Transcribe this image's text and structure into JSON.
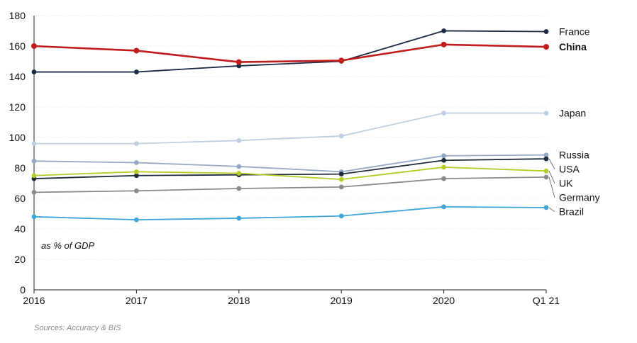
{
  "chart_data": {
    "type": "line",
    "x": [
      "2016",
      "2017",
      "2018",
      "2019",
      "2020",
      "Q1 21"
    ],
    "ylim": [
      0,
      180
    ],
    "yticks": [
      0,
      20,
      40,
      60,
      80,
      100,
      120,
      140,
      160,
      180
    ],
    "grid": true,
    "legend": "direct labels at right end of lines",
    "annotation": "as % of GDP",
    "source": "Sources: Accuracy & BIS",
    "series": [
      {
        "name": "France",
        "color": "#1e2b45",
        "bold": false,
        "values": [
          143,
          143,
          147,
          150,
          170,
          169.5
        ]
      },
      {
        "name": "China",
        "color": "#c01c1c",
        "bold": true,
        "values": [
          160,
          157,
          149.5,
          150.5,
          161,
          159.5
        ]
      },
      {
        "name": "Japan",
        "color": "#bfcde0",
        "bold": false,
        "values": [
          96,
          96,
          98,
          101,
          116,
          116
        ]
      },
      {
        "name": "Russia",
        "color": "#95a8c4",
        "bold": false,
        "values": [
          84.5,
          83.5,
          81,
          77.5,
          88,
          88.5
        ]
      },
      {
        "name": "USA",
        "color": "#1f2a3c",
        "bold": false,
        "values": [
          73,
          75,
          75.5,
          76,
          85,
          86
        ]
      },
      {
        "name": "UK",
        "color": "#b6cc26",
        "bold": false,
        "values": [
          75,
          77.5,
          76.5,
          72.5,
          80.5,
          78
        ]
      },
      {
        "name": "Germany",
        "color": "#8a8a8a",
        "bold": false,
        "values": [
          64,
          65,
          66.5,
          67.5,
          73,
          74
        ]
      },
      {
        "name": "Brazil",
        "color": "#3ea6d8",
        "bold": false,
        "values": [
          48,
          46,
          47,
          48.5,
          54.5,
          54
        ]
      }
    ]
  }
}
